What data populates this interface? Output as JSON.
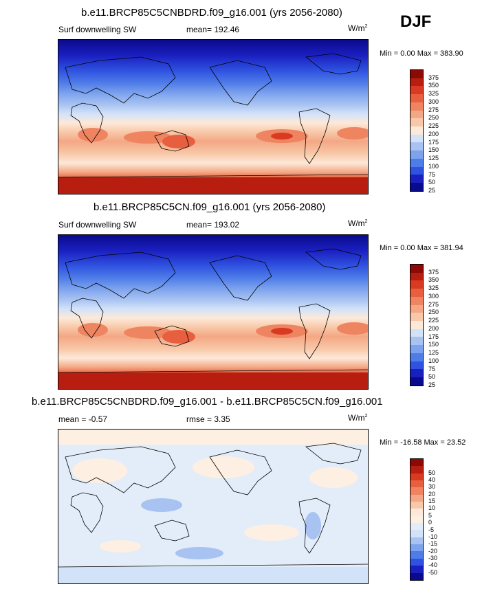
{
  "season": "DJF",
  "units": "W/m",
  "units_sup": "2",
  "colorbar_colors": {
    "abs": [
      "#0a0a8c",
      "#1a1fbf",
      "#2f52e0",
      "#4f7de8",
      "#7ea3ee",
      "#a8c3f2",
      "#d2e2f8",
      "#fde9d9",
      "#f8c8a8",
      "#f4a784",
      "#ef8461",
      "#e85f3f",
      "#d93a22",
      "#b81e10",
      "#8b0a06"
    ],
    "diff": [
      "#0a0a8c",
      "#1a1fbf",
      "#2f52e0",
      "#4f7de8",
      "#7ea3ee",
      "#a8c3f2",
      "#d2e2f8",
      "#e3edf9",
      "#fdefe2",
      "#fde9d9",
      "#f8c8a8",
      "#f4a784",
      "#ef8461",
      "#e85f3f",
      "#d93a22",
      "#b81e10",
      "#8b0a06"
    ]
  },
  "chart_data": [
    {
      "type": "heatmap",
      "title": "b.e11.BRCP85C5CNBDRD.f09_g16.001 (yrs 2056-2080)",
      "variable": "Surf downwelling SW",
      "mean_label": "mean= 192.46",
      "units": "W/m",
      "min_max_label": "Min =   0.00 Max = 383.90",
      "min": 0.0,
      "max": 383.9,
      "mean": 192.46,
      "colorbar_levels": [
        "375",
        "350",
        "325",
        "300",
        "275",
        "250",
        "225",
        "200",
        "175",
        "150",
        "125",
        "100",
        "75",
        "50",
        "25"
      ]
    },
    {
      "type": "heatmap",
      "title": "b.e11.BRCP85C5CN.f09_g16.001 (yrs 2056-2080)",
      "variable": "Surf downwelling SW",
      "mean_label": "mean= 193.02",
      "units": "W/m",
      "min_max_label": "Min =   0.00 Max = 381.94",
      "min": 0.0,
      "max": 381.94,
      "mean": 193.02,
      "colorbar_levels": [
        "375",
        "350",
        "325",
        "300",
        "275",
        "250",
        "225",
        "200",
        "175",
        "150",
        "125",
        "100",
        "75",
        "50",
        "25"
      ]
    },
    {
      "type": "heatmap",
      "title": "b.e11.BRCP85C5CNBDRD.f09_g16.001 - b.e11.BRCP85C5CN.f09_g16.001",
      "mean_label": "mean =  -0.57",
      "rmse_label": "rmse =    3.35",
      "units": "W/m",
      "min_max_label": "Min = -16.58 Max =  23.52",
      "min": -16.58,
      "max": 23.52,
      "mean": -0.57,
      "rmse": 3.35,
      "colorbar_levels": [
        "50",
        "40",
        "30",
        "20",
        "15",
        "10",
        "5",
        "0",
        "-5",
        "-10",
        "-15",
        "-20",
        "-30",
        "-40",
        "-50"
      ]
    }
  ]
}
